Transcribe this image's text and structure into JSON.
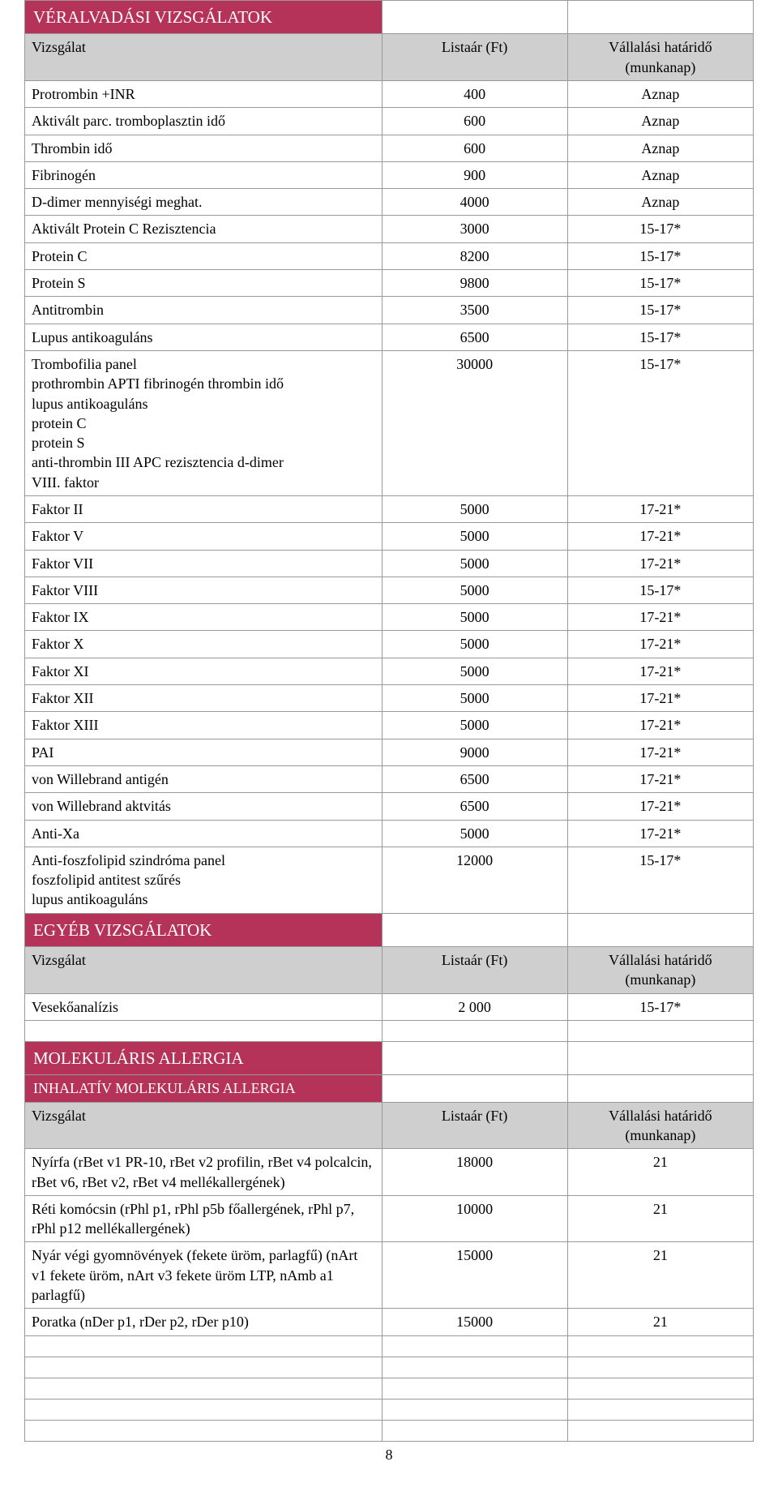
{
  "pageNumber": "8",
  "colors": {
    "sectionBg": "#b53258",
    "sectionText": "#ffffff",
    "subHeaderBg": "#cfcfcf",
    "border": "#999999"
  },
  "sections": [
    {
      "type": "section",
      "title": "VÉRALVADÁSI VIZSGÁLATOK",
      "header": {
        "name": "Vizsgálat",
        "price": "Listaár (Ft)",
        "due": "Vállalási határidő\n(munkanap)"
      },
      "rows": [
        {
          "name": "Protrombin +INR",
          "price": "400",
          "due": "Aznap"
        },
        {
          "name": "Aktivált parc. tromboplasztin idő",
          "price": "600",
          "due": "Aznap"
        },
        {
          "name": "Thrombin idő",
          "price": "600",
          "due": "Aznap"
        },
        {
          "name": "Fibrinogén",
          "price": "900",
          "due": "Aznap"
        },
        {
          "name": "D-dimer mennyiségi meghat.",
          "price": "4000",
          "due": "Aznap"
        },
        {
          "name": "Aktivált Protein C Rezisztencia",
          "price": "3000",
          "due": "15-17*"
        },
        {
          "name": "Protein C",
          "price": "8200",
          "due": "15-17*"
        },
        {
          "name": "Protein S",
          "price": "9800",
          "due": "15-17*"
        },
        {
          "name": "Antitrombin",
          "price": "3500",
          "due": "15-17*"
        },
        {
          "name": "Lupus antikoaguláns",
          "price": "6500",
          "due": "15-17*"
        },
        {
          "name": "Trombofilia panel\nprothrombin APTI fibrinogén thrombin idő\nlupus antikoaguláns\nprotein C\nprotein S\nanti-thrombin III APC rezisztencia d-dimer\nVIII. faktor",
          "price": "30000",
          "due": "15-17*"
        },
        {
          "name": "Faktor II",
          "price": "5000",
          "due": "17-21*"
        },
        {
          "name": "Faktor V",
          "price": "5000",
          "due": "17-21*"
        },
        {
          "name": "Faktor VII",
          "price": "5000",
          "due": "17-21*"
        },
        {
          "name": "Faktor VIII",
          "price": "5000",
          "due": "15-17*"
        },
        {
          "name": "Faktor IX",
          "price": "5000",
          "due": "17-21*"
        },
        {
          "name": "Faktor X",
          "price": "5000",
          "due": "17-21*"
        },
        {
          "name": "Faktor XI",
          "price": "5000",
          "due": "17-21*"
        },
        {
          "name": "Faktor XII",
          "price": "5000",
          "due": "17-21*"
        },
        {
          "name": "Faktor XIII",
          "price": "5000",
          "due": "17-21*"
        },
        {
          "name": "PAI",
          "price": "9000",
          "due": "17-21*"
        },
        {
          "name": "von Willebrand antigén",
          "price": "6500",
          "due": "17-21*"
        },
        {
          "name": "von Willebrand aktvitás",
          "price": "6500",
          "due": "17-21*"
        },
        {
          "name": "Anti-Xa",
          "price": "5000",
          "due": "17-21*"
        },
        {
          "name": "Anti-foszfolipid szindróma panel\nfoszfolipid antitest szűrés\nlupus antikoaguláns",
          "price": "12000",
          "due": "15-17*"
        }
      ]
    },
    {
      "type": "section",
      "title": "EGYÉB VIZSGÁLATOK",
      "header": {
        "name": "Vizsgálat",
        "price": "Listaár (Ft)",
        "due": "Vállalási határidő\n(munkanap)"
      },
      "rows": [
        {
          "name": "Vesekőanalízis",
          "price": "2 000",
          "due": "15-17*"
        }
      ],
      "emptyRowsAfter": 1
    },
    {
      "type": "section",
      "title": "MOLEKULÁRIS ALLERGIA",
      "subsection": "INHALATÍV MOLEKULÁRIS ALLERGIA",
      "header": {
        "name": "Vizsgálat",
        "price": "Listaár (Ft)",
        "due": "Vállalási határidő\n(munkanap)"
      },
      "rows": [
        {
          "name": "Nyírfa (rBet v1 PR-10, rBet v2 profilin, rBet v4 polcalcin, rBet v6, rBet v2, rBet v4 mellékallergének)",
          "price": "18000",
          "due": "21"
        },
        {
          "name": "Réti komócsin (rPhl p1, rPhl p5b főallergének, rPhl p7, rPhl p12 mellékallergének)",
          "price": "10000",
          "due": "21"
        },
        {
          "name": "Nyár végi gyomnövények (fekete üröm, parlagfű) (nArt v1 fekete üröm, nArt v3 fekete üröm LTP, nAmb a1 parlagfű)",
          "price": "15000",
          "due": "21"
        },
        {
          "name": "Poratka (nDer p1, rDer p2, rDer p10)",
          "price": "15000",
          "due": "21"
        }
      ],
      "emptyRowsAfter": 5
    }
  ]
}
